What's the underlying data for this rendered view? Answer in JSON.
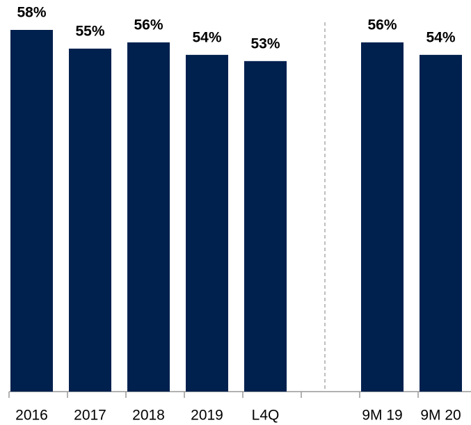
{
  "chart_data": {
    "type": "bar",
    "categories": [
      "2016",
      "2017",
      "2018",
      "2019",
      "L4Q",
      null,
      "9M 19",
      "9M 20"
    ],
    "values": [
      58,
      55,
      56,
      54,
      53,
      null,
      56,
      54
    ],
    "value_labels": [
      "58%",
      "55%",
      "56%",
      "54%",
      "53%",
      null,
      "56%",
      "54%"
    ],
    "color": "#00204e"
  }
}
